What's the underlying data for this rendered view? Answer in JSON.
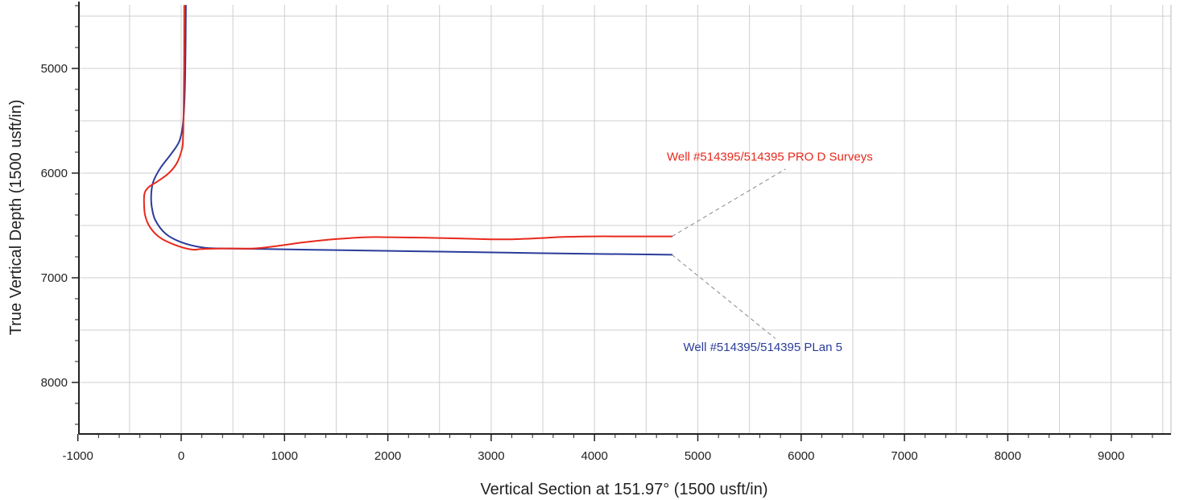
{
  "chart_data": {
    "type": "line",
    "title": "",
    "xlabel": "Vertical Section at 151.97° (1500 usft/in)",
    "ylabel": "True Vertical Depth (1500 usft/in)",
    "xlim": [
      -1000,
      9600
    ],
    "ylim": [
      4400,
      8500
    ],
    "y_inverted": true,
    "grid": true,
    "x_ticks": [
      -1000,
      0,
      1000,
      2000,
      3000,
      4000,
      5000,
      6000,
      7000,
      8000,
      9000
    ],
    "y_ticks": [
      5000,
      6000,
      7000,
      8000
    ],
    "series": [
      {
        "name": "Well #514395/514395 PRO D Surveys",
        "color": "#e8291c",
        "x": [
          30,
          28,
          25,
          22,
          18,
          10,
          -40,
          -120,
          -230,
          -310,
          -350,
          -360,
          -350,
          -300,
          -200,
          -50,
          100,
          200,
          400,
          700,
          900,
          1200,
          1500,
          1800,
          2000,
          2500,
          3000,
          3200,
          3500,
          3700,
          4000,
          4300,
          4750
        ],
        "y": [
          4400,
          5000,
          5300,
          5500,
          5650,
          5760,
          5900,
          6000,
          6080,
          6130,
          6180,
          6250,
          6400,
          6520,
          6620,
          6690,
          6730,
          6725,
          6720,
          6720,
          6700,
          6660,
          6630,
          6612,
          6612,
          6620,
          6632,
          6632,
          6620,
          6610,
          6605,
          6605,
          6605
        ]
      },
      {
        "name": "Well #514395/514395 PLan 5",
        "color": "#2a3c9a",
        "x": [
          45,
          40,
          30,
          15,
          -20,
          -100,
          -200,
          -270,
          -290,
          -285,
          -250,
          -150,
          0,
          200,
          400,
          800,
          1500,
          2500,
          3500,
          4750
        ],
        "y": [
          4400,
          5000,
          5350,
          5550,
          5700,
          5820,
          5950,
          6080,
          6200,
          6320,
          6450,
          6580,
          6660,
          6710,
          6720,
          6725,
          6735,
          6750,
          6765,
          6780
        ]
      }
    ],
    "annotations": [
      {
        "text": "Well #514395/514395 PRO D Surveys",
        "color": "#e8291c",
        "leader_from": [
          4750,
          6605
        ],
        "leader_to": [
          5850,
          5960
        ],
        "label_at": [
          4700,
          5880
        ]
      },
      {
        "text": "Well #514395/514395 PLan 5",
        "color": "#2a3c9a",
        "leader_from": [
          4750,
          6780
        ],
        "leader_to": [
          5750,
          7580
        ],
        "label_at": [
          4860,
          7700
        ]
      }
    ]
  }
}
